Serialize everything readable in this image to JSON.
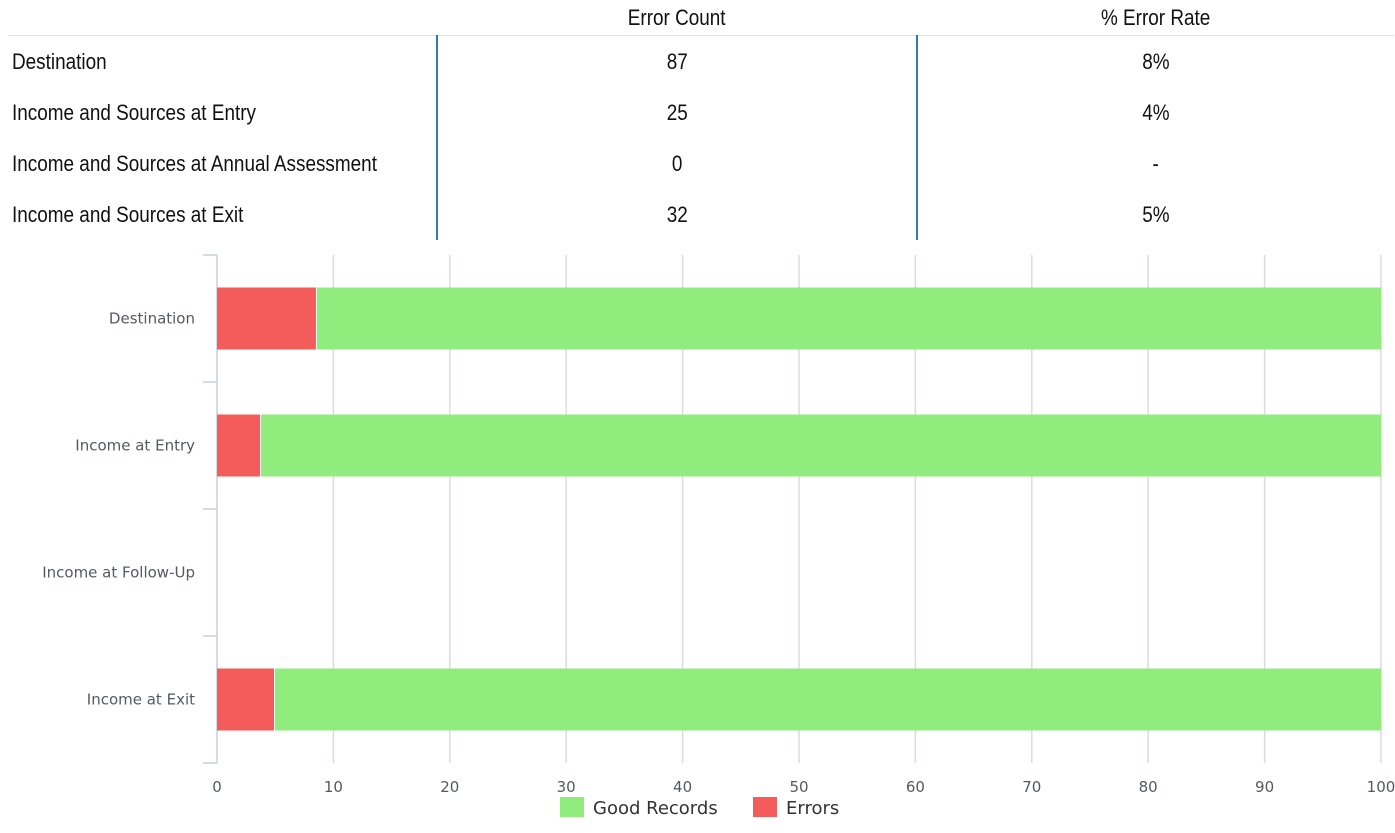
{
  "table": {
    "headers": [
      "",
      "Error Count",
      "% Error Rate"
    ],
    "rows": [
      {
        "label": "Destination",
        "count": "87",
        "rate": "8%"
      },
      {
        "label": "Income and Sources at Entry",
        "count": "25",
        "rate": "4%"
      },
      {
        "label": "Income and Sources at Annual Assessment",
        "count": "0",
        "rate": "-"
      },
      {
        "label": "Income and Sources at Exit",
        "count": "32",
        "rate": "5%"
      }
    ]
  },
  "chart_data": {
    "type": "bar",
    "orientation": "horizontal",
    "stacked": true,
    "categories": [
      "Destination",
      "Income at Entry",
      "Income at Follow-Up",
      "Income at Exit"
    ],
    "series": [
      {
        "name": "Errors",
        "color": "#f45b5b",
        "values": [
          8.5,
          3.7,
          0,
          4.9
        ]
      },
      {
        "name": "Good Records",
        "color": "#90ed7d",
        "values": [
          91.5,
          96.3,
          0,
          95.1
        ]
      }
    ],
    "xlim": [
      0,
      100
    ],
    "xticks": [
      "0",
      "10",
      "20",
      "30",
      "40",
      "50",
      "60",
      "70",
      "80",
      "90",
      "100"
    ],
    "grid": true,
    "legend": {
      "position": "bottom",
      "items": [
        "Good Records",
        "Errors"
      ]
    },
    "title": "",
    "xlabel": "",
    "ylabel": ""
  }
}
